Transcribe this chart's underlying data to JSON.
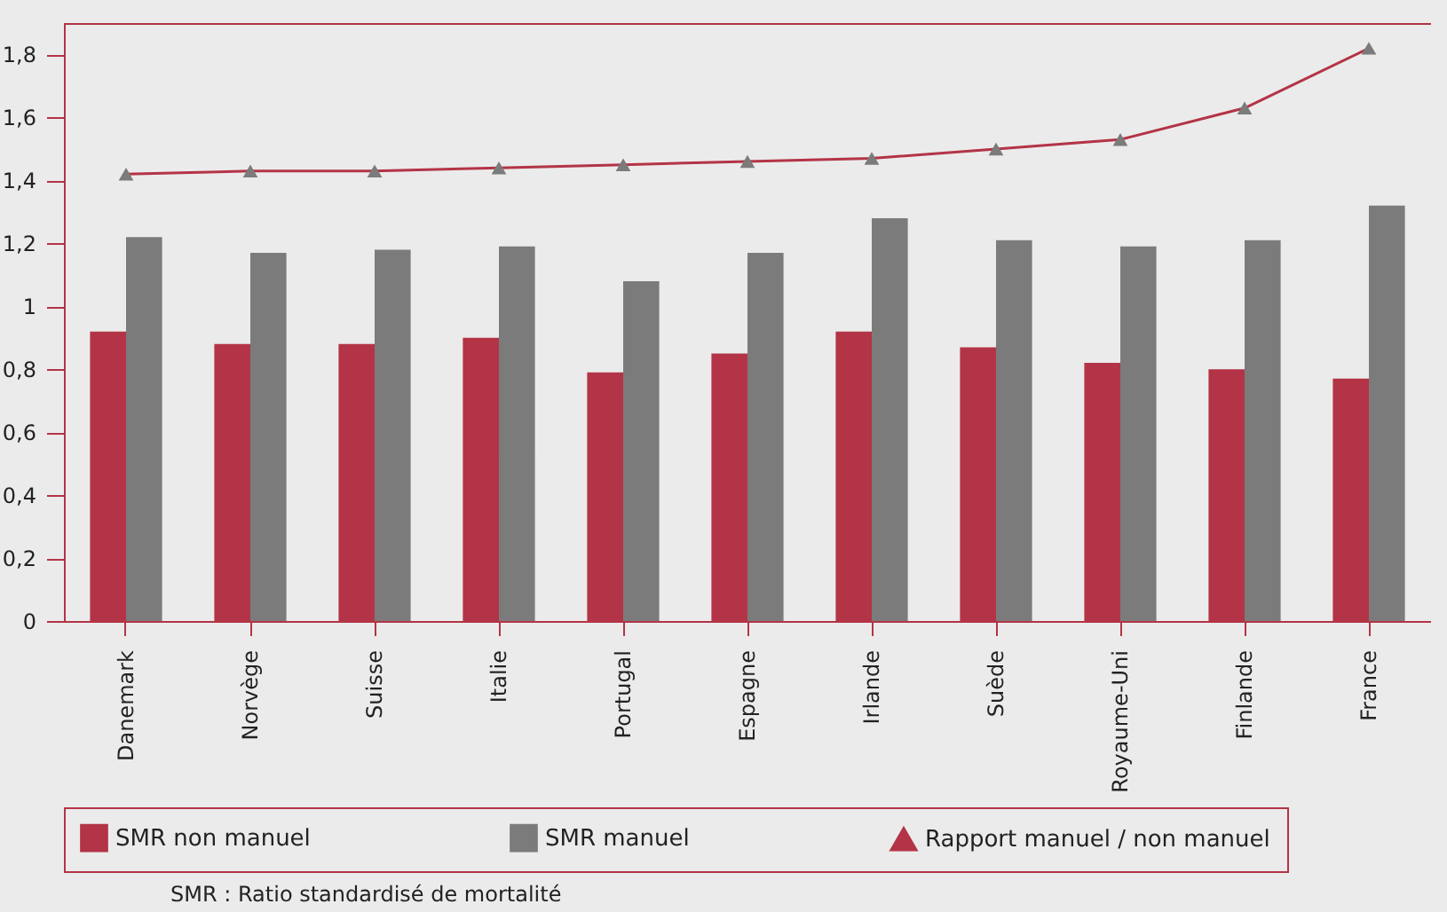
{
  "chart_data": {
    "type": "bar",
    "categories": [
      "Danemark",
      "Norvège",
      "Suisse",
      "Italie",
      "Portugal",
      "Espagne",
      "Irlande",
      "Suède",
      "Royaume-Uni",
      "Finlande",
      "France"
    ],
    "series": [
      {
        "name": "SMR non manuel",
        "color": "#b33446",
        "values": [
          0.92,
          0.88,
          0.88,
          0.9,
          0.79,
          0.85,
          0.92,
          0.87,
          0.82,
          0.8,
          0.77
        ]
      },
      {
        "name": "SMR manuel",
        "color": "#7b7b7b",
        "values": [
          1.22,
          1.17,
          1.18,
          1.19,
          1.08,
          1.17,
          1.28,
          1.21,
          1.19,
          1.21,
          1.32
        ]
      },
      {
        "name": "Rapport manuel / non manuel",
        "type": "line",
        "color": "#b33446",
        "marker": "triangle",
        "values": [
          1.42,
          1.43,
          1.43,
          1.44,
          1.45,
          1.46,
          1.47,
          1.5,
          1.53,
          1.63,
          1.82
        ]
      }
    ],
    "ylim": [
      0,
      1.9
    ],
    "yticks": [
      0,
      {
        "value": 0.2,
        "label": "0,2"
      },
      {
        "value": 0.4,
        "label": "0,4"
      },
      {
        "value": 0.6,
        "label": "0,6"
      },
      {
        "value": 0.8,
        "label": "0,8"
      },
      1,
      {
        "value": 1.2,
        "label": "1,2"
      },
      {
        "value": 1.4,
        "label": "1,4"
      },
      {
        "value": 1.6,
        "label": "1,6"
      },
      {
        "value": 1.8,
        "label": "1,8"
      }
    ],
    "grid": false,
    "legend": "bottom",
    "annotations": [
      "SMR : Ratio standardisé de mortalité"
    ]
  }
}
